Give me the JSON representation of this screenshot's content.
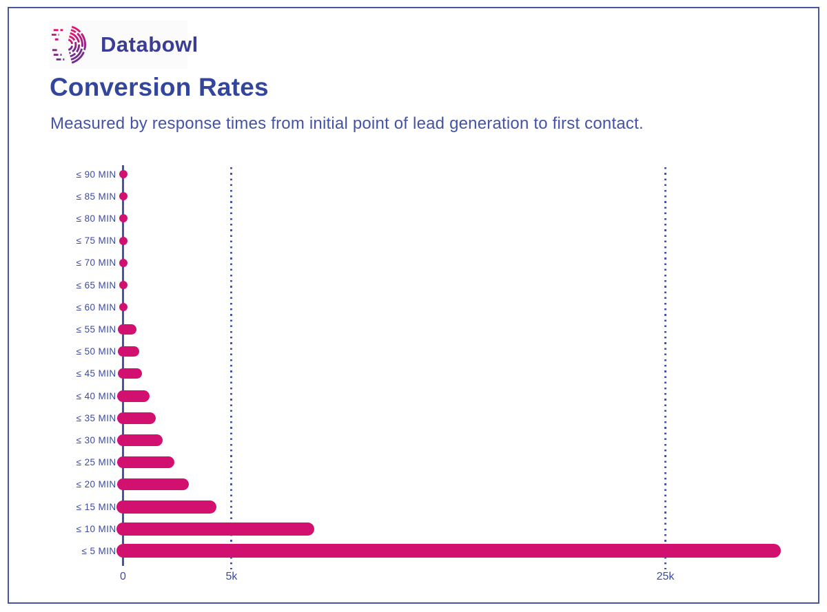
{
  "logo": {
    "brand": "Databowl",
    "icon": "databowl-arc-d-icon",
    "wordmark_color": "#3a3d96",
    "gradient_top": "#e8186f",
    "gradient_mid": "#b31c7e",
    "gradient_bottom": "#6a2e91"
  },
  "header": {
    "title": "Conversion Rates",
    "subtitle": "Measured by response times from initial point of lead generation to first contact."
  },
  "chart_data": {
    "type": "bar",
    "orientation": "horizontal",
    "title": "Conversion Rates",
    "xlabel": "",
    "ylabel": "",
    "categories": [
      "≤ 90 MIN",
      "≤ 85 MIN",
      "≤ 80 MIN",
      "≤ 75 MIN",
      "≤ 70 MIN",
      "≤ 65 MIN",
      "≤ 60 MIN",
      "≤ 55 MIN",
      "≤ 50 MIN",
      "≤ 45 MIN",
      "≤ 40 MIN",
      "≤ 35 MIN",
      "≤ 30 MIN",
      "≤ 25 MIN",
      "≤ 20 MIN",
      "≤ 15 MIN",
      "≤ 10 MIN",
      "≤ 5 MIN"
    ],
    "values": [
      50,
      60,
      70,
      80,
      90,
      100,
      120,
      380,
      500,
      650,
      950,
      1250,
      1550,
      2100,
      2750,
      4000,
      8500,
      30000
    ],
    "xticks": [
      {
        "label": "0",
        "value": 0
      },
      {
        "label": "5k",
        "value": 5000
      },
      {
        "label": "25k",
        "value": 25000
      }
    ],
    "xlim": [
      0,
      32500
    ],
    "grid": "dotted-vertical-at-ticks",
    "legend": "none",
    "bar_color": "#d1106f",
    "axis_color": "#4653a6",
    "label_color": "#3c4aa0"
  },
  "frame": {
    "border_color": "#4653a6"
  }
}
